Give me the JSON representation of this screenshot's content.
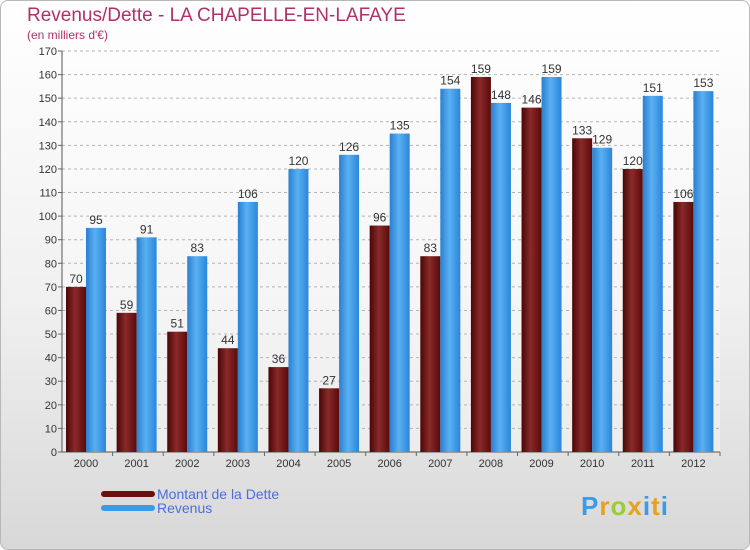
{
  "title": "Revenus/Dette - LA CHAPELLE-EN-LAFAYE",
  "subtitle": "(en milliers d'€)",
  "chart_data": {
    "type": "bar",
    "categories": [
      "2000",
      "2001",
      "2002",
      "2003",
      "2004",
      "2005",
      "2006",
      "2007",
      "2008",
      "2009",
      "2010",
      "2011",
      "2012"
    ],
    "series": [
      {
        "name": "Montant de la Dette",
        "color": "#7a1a1a",
        "values": [
          70,
          59,
          51,
          44,
          36,
          27,
          96,
          83,
          159,
          146,
          133,
          120,
          106
        ]
      },
      {
        "name": "Revenus",
        "color": "#3c9be6",
        "values": [
          95,
          91,
          83,
          106,
          120,
          126,
          135,
          154,
          148,
          159,
          129,
          151,
          153
        ]
      }
    ],
    "ylim": [
      0,
      170
    ],
    "ytick_step": 10,
    "grid": true,
    "legend_position": "bottom-left"
  },
  "legend": {
    "items": [
      {
        "label": "Montant de la Dette",
        "color": "#6b0f0f"
      },
      {
        "label": "Revenus",
        "color": "#3c9be6"
      }
    ]
  },
  "logo": {
    "letters": [
      "P",
      "r",
      "o",
      "x",
      "i",
      "t",
      "i"
    ],
    "colors": [
      "#3c9be6",
      "#e8a020",
      "#9acd32",
      "#e8a020",
      "#3c9be6",
      "#e8a020",
      "#3c9be6"
    ]
  }
}
